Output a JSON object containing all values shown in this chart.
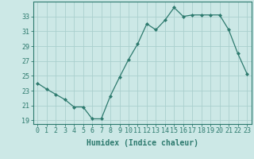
{
  "x_values": [
    0,
    1,
    2,
    3,
    4,
    5,
    6,
    7,
    8,
    9,
    10,
    11,
    12,
    13,
    14,
    15,
    16,
    17,
    18,
    19,
    20,
    21,
    22,
    23
  ],
  "y_values": [
    24.0,
    23.2,
    22.5,
    21.8,
    20.8,
    20.8,
    19.2,
    19.2,
    22.3,
    24.8,
    27.2,
    29.3,
    32.0,
    31.2,
    32.5,
    34.2,
    33.0,
    33.2,
    33.2,
    33.2,
    33.2,
    31.2,
    28.0,
    25.3
  ],
  "line_color": "#2d7a6e",
  "marker": "D",
  "marker_size": 2.0,
  "bg_color": "#cce8e6",
  "grid_color": "#aacfcd",
  "axis_color": "#2d7a6e",
  "xlabel": "Humidex (Indice chaleur)",
  "xlabel_fontsize": 7,
  "tick_fontsize": 6,
  "ylim": [
    18.5,
    35.0
  ],
  "yticks": [
    19,
    21,
    23,
    25,
    27,
    29,
    31,
    33
  ],
  "xticks": [
    0,
    1,
    2,
    3,
    4,
    5,
    6,
    7,
    8,
    9,
    10,
    11,
    12,
    13,
    14,
    15,
    16,
    17,
    18,
    19,
    20,
    21,
    22,
    23
  ]
}
